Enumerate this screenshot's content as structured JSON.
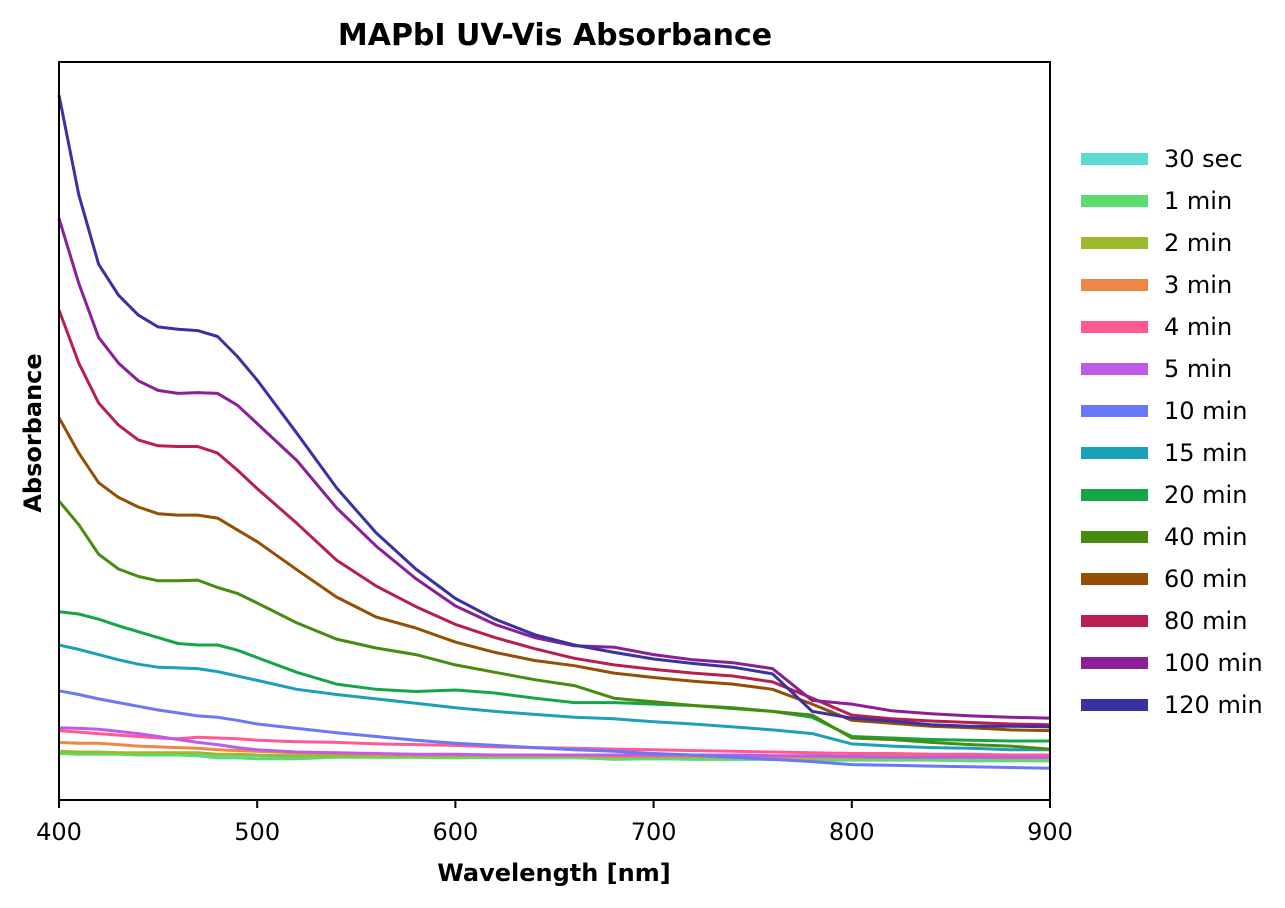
{
  "chart_data": {
    "type": "line",
    "title": "MAPbI UV-Vis Absorbance",
    "xlabel": "Wavelength [nm]",
    "ylabel": "Absorbance",
    "xlim": [
      400,
      900
    ],
    "ylim": [
      0,
      1
    ],
    "x_ticks": [
      400,
      500,
      600,
      700,
      800,
      900
    ],
    "y_ticks_shown": false,
    "grid": false,
    "legend_placement": "outside-right",
    "x": [
      400,
      410,
      420,
      430,
      440,
      450,
      460,
      470,
      480,
      490,
      500,
      520,
      540,
      560,
      580,
      600,
      620,
      640,
      660,
      680,
      700,
      720,
      740,
      760,
      780,
      800,
      820,
      840,
      860,
      880,
      900
    ],
    "series": [
      {
        "name": "30 sec",
        "color": "#5cd9d4",
        "values": [
          0.065,
          0.064,
          0.064,
          0.063,
          0.063,
          0.062,
          0.062,
          0.061,
          0.061,
          0.06,
          0.06,
          0.059,
          0.059,
          0.058,
          0.058,
          0.058,
          0.057,
          0.057,
          0.057,
          0.056,
          0.056,
          0.056,
          0.056,
          0.055,
          0.055,
          0.055,
          0.055,
          0.055,
          0.055,
          0.055,
          0.055
        ]
      },
      {
        "name": "1 min",
        "color": "#5bdc71",
        "values": [
          0.063,
          0.062,
          0.062,
          0.062,
          0.061,
          0.061,
          0.061,
          0.06,
          0.057,
          0.057,
          0.056,
          0.056,
          0.058,
          0.058,
          0.058,
          0.057,
          0.058,
          0.058,
          0.058,
          0.055,
          0.056,
          0.055,
          0.055,
          0.055,
          0.054,
          0.054,
          0.054,
          0.054,
          0.053,
          0.053,
          0.053
        ]
      },
      {
        "name": "2 min",
        "color": "#9cba2e",
        "values": [
          0.066,
          0.065,
          0.065,
          0.064,
          0.064,
          0.064,
          0.064,
          0.064,
          0.062,
          0.062,
          0.061,
          0.06,
          0.06,
          0.06,
          0.06,
          0.06,
          0.06,
          0.06,
          0.061,
          0.06,
          0.06,
          0.06,
          0.059,
          0.059,
          0.059,
          0.059,
          0.059,
          0.059,
          0.059,
          0.059,
          0.059
        ]
      },
      {
        "name": "3 min",
        "color": "#ee8744",
        "values": [
          0.078,
          0.077,
          0.077,
          0.075,
          0.073,
          0.072,
          0.071,
          0.07,
          0.068,
          0.067,
          0.066,
          0.064,
          0.063,
          0.062,
          0.061,
          0.061,
          0.06,
          0.06,
          0.06,
          0.059,
          0.059,
          0.059,
          0.058,
          0.058,
          0.058,
          0.058,
          0.058,
          0.058,
          0.058,
          0.057,
          0.057
        ]
      },
      {
        "name": "4 min",
        "color": "#ff5a94",
        "values": [
          0.094,
          0.092,
          0.09,
          0.088,
          0.086,
          0.084,
          0.083,
          0.085,
          0.084,
          0.083,
          0.081,
          0.079,
          0.078,
          0.076,
          0.075,
          0.074,
          0.072,
          0.071,
          0.07,
          0.069,
          0.068,
          0.067,
          0.066,
          0.065,
          0.064,
          0.063,
          0.063,
          0.062,
          0.062,
          0.061,
          0.061
        ]
      },
      {
        "name": "5 min",
        "color": "#c05ae8",
        "values": [
          0.098,
          0.097,
          0.096,
          0.093,
          0.09,
          0.086,
          0.082,
          0.078,
          0.075,
          0.071,
          0.068,
          0.065,
          0.064,
          0.063,
          0.062,
          0.062,
          0.061,
          0.061,
          0.061,
          0.061,
          0.061,
          0.061,
          0.061,
          0.06,
          0.06,
          0.059,
          0.058,
          0.058,
          0.058,
          0.058,
          0.058
        ]
      },
      {
        "name": "10 min",
        "color": "#6878f7",
        "values": [
          0.148,
          0.143,
          0.137,
          0.132,
          0.127,
          0.122,
          0.118,
          0.114,
          0.112,
          0.108,
          0.103,
          0.097,
          0.091,
          0.086,
          0.081,
          0.077,
          0.074,
          0.071,
          0.068,
          0.066,
          0.063,
          0.061,
          0.058,
          0.055,
          0.052,
          0.048,
          0.047,
          0.046,
          0.045,
          0.044,
          0.043
        ]
      },
      {
        "name": "15 min",
        "color": "#1ba0b8",
        "values": [
          0.21,
          0.204,
          0.197,
          0.19,
          0.184,
          0.18,
          0.179,
          0.178,
          0.174,
          0.168,
          0.162,
          0.15,
          0.143,
          0.137,
          0.131,
          0.125,
          0.12,
          0.116,
          0.112,
          0.11,
          0.106,
          0.103,
          0.099,
          0.095,
          0.09,
          0.076,
          0.073,
          0.071,
          0.07,
          0.068,
          0.068
        ]
      },
      {
        "name": "20 min",
        "color": "#13a547",
        "values": [
          0.255,
          0.252,
          0.245,
          0.236,
          0.228,
          0.22,
          0.212,
          0.21,
          0.21,
          0.203,
          0.193,
          0.173,
          0.157,
          0.15,
          0.147,
          0.149,
          0.145,
          0.138,
          0.132,
          0.132,
          0.13,
          0.128,
          0.125,
          0.12,
          0.112,
          0.086,
          0.084,
          0.082,
          0.081,
          0.08,
          0.08
        ]
      },
      {
        "name": "40 min",
        "color": "#498b0e",
        "values": [
          0.405,
          0.373,
          0.333,
          0.313,
          0.303,
          0.297,
          0.297,
          0.298,
          0.288,
          0.28,
          0.267,
          0.24,
          0.218,
          0.206,
          0.197,
          0.183,
          0.173,
          0.163,
          0.155,
          0.138,
          0.133,
          0.128,
          0.124,
          0.12,
          0.115,
          0.084,
          0.082,
          0.078,
          0.075,
          0.073,
          0.069
        ]
      },
      {
        "name": "60 min",
        "color": "#964e04",
        "values": [
          0.518,
          0.47,
          0.43,
          0.41,
          0.397,
          0.388,
          0.386,
          0.386,
          0.382,
          0.366,
          0.35,
          0.312,
          0.275,
          0.248,
          0.233,
          0.214,
          0.2,
          0.189,
          0.182,
          0.172,
          0.166,
          0.161,
          0.157,
          0.15,
          0.13,
          0.108,
          0.104,
          0.1,
          0.098,
          0.095,
          0.094
        ]
      },
      {
        "name": "80 min",
        "color": "#ba1e4e",
        "values": [
          0.664,
          0.592,
          0.538,
          0.508,
          0.488,
          0.48,
          0.479,
          0.479,
          0.47,
          0.447,
          0.422,
          0.375,
          0.325,
          0.29,
          0.262,
          0.238,
          0.22,
          0.205,
          0.192,
          0.183,
          0.177,
          0.172,
          0.168,
          0.16,
          0.138,
          0.115,
          0.11,
          0.107,
          0.105,
          0.103,
          0.102
        ]
      },
      {
        "name": "100 min",
        "color": "#8a1f98",
        "values": [
          0.788,
          0.7,
          0.627,
          0.592,
          0.568,
          0.555,
          0.551,
          0.552,
          0.551,
          0.535,
          0.51,
          0.46,
          0.396,
          0.344,
          0.3,
          0.263,
          0.238,
          0.22,
          0.209,
          0.207,
          0.197,
          0.19,
          0.186,
          0.178,
          0.135,
          0.13,
          0.121,
          0.117,
          0.114,
          0.112,
          0.111
        ]
      },
      {
        "name": "120 min",
        "color": "#3b32a1",
        "values": [
          0.955,
          0.82,
          0.726,
          0.684,
          0.657,
          0.641,
          0.638,
          0.636,
          0.628,
          0.601,
          0.569,
          0.497,
          0.423,
          0.362,
          0.313,
          0.273,
          0.245,
          0.224,
          0.21,
          0.2,
          0.191,
          0.185,
          0.18,
          0.171,
          0.12,
          0.111,
          0.107,
          0.102,
          0.1,
          0.1,
          0.099
        ]
      }
    ]
  }
}
